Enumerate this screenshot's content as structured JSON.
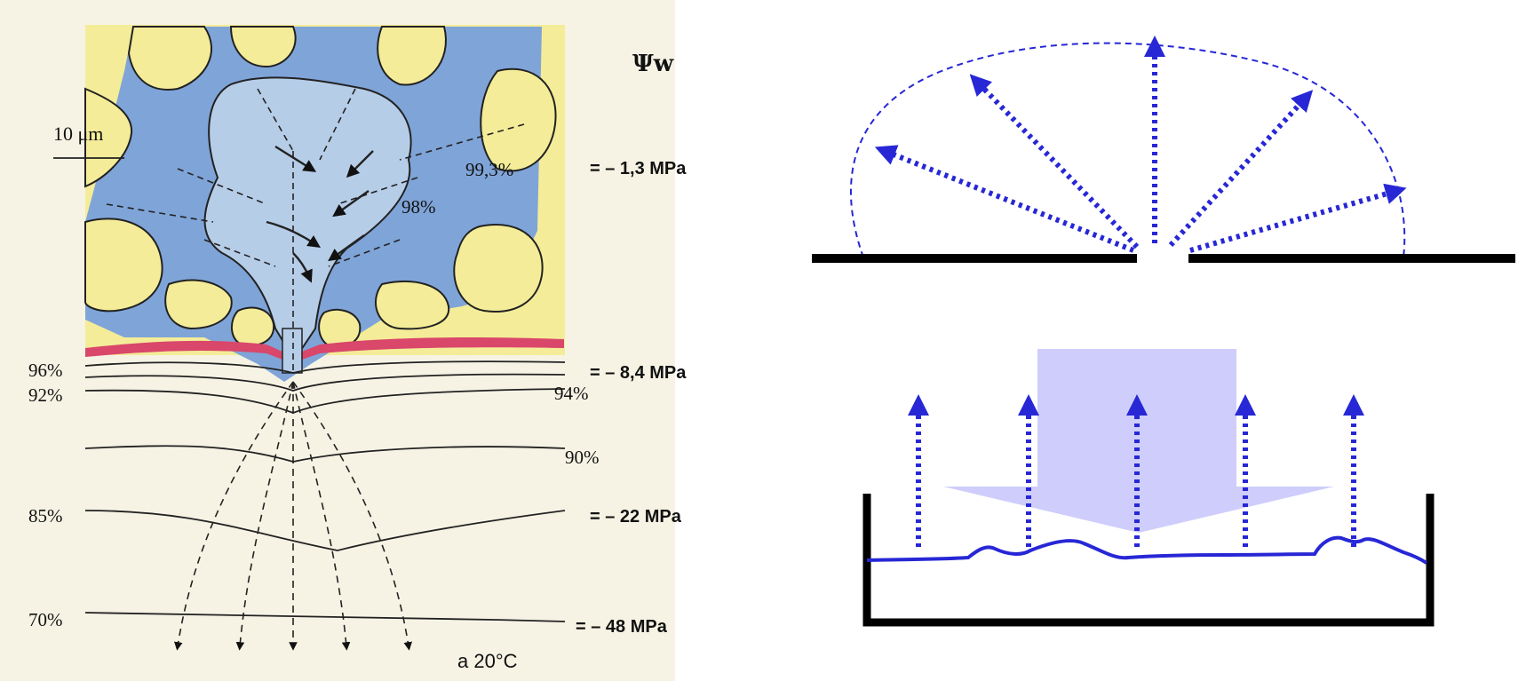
{
  "leaf": {
    "scale_label": "10 μm",
    "psi_symbol": "Ψw",
    "temperature": "a 20°C",
    "humidity": {
      "h993": "99,3%",
      "h98": "98%",
      "h96": "96%",
      "h94": "94%",
      "h92": "92%",
      "h90": "90%",
      "h85": "85%",
      "h70": "70%"
    },
    "potentials": {
      "p1": "= – 1,3 MPa",
      "p2": "= – 8,4 MPa",
      "p3": "= – 22 MPa",
      "p4": "= – 48 MPa"
    }
  },
  "colors": {
    "accent": "#2727d6",
    "light_fill": "#c9c8fb",
    "cell_blue": "#7fa4d8",
    "cell_lightblue": "#b6cde8",
    "cell_yellow": "#f4ec98",
    "cuticle_red": "#d9476b",
    "paper": "#f6f3e4",
    "black": "#000000"
  }
}
